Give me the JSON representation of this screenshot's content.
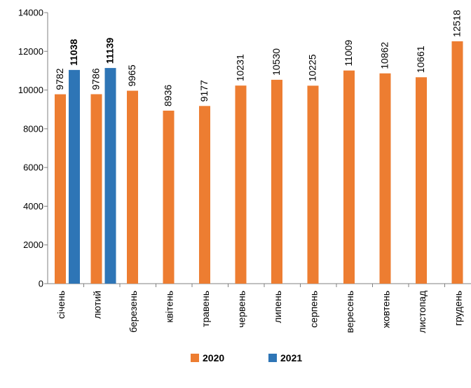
{
  "chart_data": {
    "type": "bar",
    "categories": [
      "січень",
      "лютий",
      "березень",
      "квітень",
      "травень",
      "червень",
      "липень",
      "серпень",
      "вересень",
      "жовтень",
      "листопад",
      "грудень"
    ],
    "series": [
      {
        "name": "2020",
        "color": "#ED7D31",
        "values": [
          9782,
          9786,
          9965,
          8936,
          9177,
          10231,
          10530,
          10225,
          11009,
          10862,
          10661,
          12518
        ],
        "labels": [
          "9782",
          "9786",
          "9965",
          "8936",
          "9177",
          "10231",
          "10530",
          "10225",
          "11009",
          "10862",
          "10661",
          "12518"
        ],
        "label_bold": false
      },
      {
        "name": "2021",
        "color": "#2E75B6",
        "values": [
          11038,
          11139,
          null,
          null,
          null,
          null,
          null,
          null,
          null,
          null,
          null,
          null
        ],
        "labels": [
          "11038",
          "11139",
          "",
          "",
          "",
          "",
          "",
          "",
          "",
          "",
          "",
          ""
        ],
        "label_bold": true
      }
    ],
    "ylim": [
      0,
      14000
    ],
    "yticks": [
      0,
      2000,
      4000,
      6000,
      8000,
      10000,
      12000,
      14000
    ],
    "ytick_labels": [
      "0",
      "2000",
      "4000",
      "6000",
      "8000",
      "10000",
      "12000",
      "14000"
    ],
    "legend_position": "bottom",
    "grid": false,
    "title": "",
    "xlabel": "",
    "ylabel": ""
  }
}
